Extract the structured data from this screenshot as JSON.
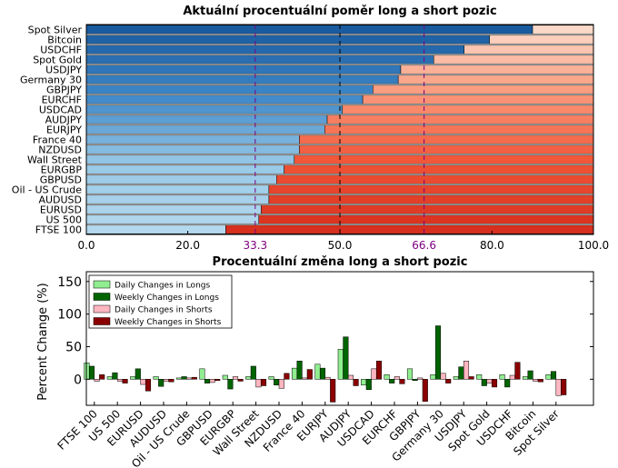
{
  "chart_data": [
    {
      "type": "bar",
      "orientation": "horizontal",
      "stacked": true,
      "title": "Aktuální procentuální poměr long a short pozic",
      "categories": [
        "Spot Silver",
        "Bitcoin",
        "USDCHF",
        "Spot Gold",
        "USDJPY",
        "Germany 30",
        "GBPJPY",
        "EURCHF",
        "USDCAD",
        "AUDJPY",
        "EURJPY",
        "France 40",
        "NZDUSD",
        "Wall Street",
        "EURGBP",
        "GBPUSD",
        "Oil - US Crude",
        "AUDUSD",
        "EURUSD",
        "US 500",
        "FTSE 100"
      ],
      "series": [
        {
          "name": "Long",
          "values": [
            88.0,
            79.5,
            74.5,
            68.5,
            62.0,
            61.5,
            56.5,
            54.5,
            50.5,
            47.5,
            47.0,
            42.0,
            42.0,
            41.0,
            39.0,
            37.5,
            36.0,
            36.0,
            34.5,
            34.0,
            27.5
          ]
        },
        {
          "name": "Short",
          "values": [
            12.0,
            20.5,
            25.5,
            31.5,
            38.0,
            38.5,
            43.5,
            45.5,
            49.5,
            52.5,
            53.0,
            58.0,
            58.0,
            59.0,
            61.0,
            62.5,
            64.0,
            64.0,
            65.5,
            66.0,
            72.5
          ]
        }
      ],
      "xlim": [
        0,
        100
      ],
      "xticks": [
        "0.0",
        "20.0",
        "50.0",
        "80.0",
        "100.0"
      ],
      "reference_lines": [
        "33.3",
        "66.6"
      ],
      "grid": false
    },
    {
      "type": "bar",
      "title": "Procentuální změna long a short pozic",
      "ylabel": "Percent Change (%)",
      "categories": [
        "FTSE 100",
        "US 500",
        "EURUSD",
        "AUDUSD",
        "Oil - US Crude",
        "GBPUSD",
        "EURGBP",
        "Wall Street",
        "NZDUSD",
        "France 40",
        "EURJPY",
        "AUDJPY",
        "USDCAD",
        "EURCHF",
        "GBPJPY",
        "Germany 30",
        "USDJPY",
        "Spot Gold",
        "USDCHF",
        "Bitcoin",
        "Spot Silver"
      ],
      "series": [
        {
          "name": "Daily Changes in Longs",
          "values": [
            25,
            4,
            4,
            4,
            2,
            16,
            6,
            4,
            4,
            17,
            23,
            46,
            -9,
            7,
            16,
            7,
            4,
            7,
            7,
            4,
            7
          ]
        },
        {
          "name": "Weekly Changes in Longs",
          "values": [
            20,
            10,
            16,
            -11,
            4,
            -6,
            -15,
            20,
            -9,
            28,
            17,
            65,
            -16,
            -6,
            -2,
            82,
            19,
            -10,
            -12,
            13,
            12
          ]
        },
        {
          "name": "Daily Changes in Shorts",
          "values": [
            -3,
            -3,
            -8,
            -3,
            2,
            -5,
            4,
            -12,
            -14,
            2,
            3,
            6,
            16,
            4,
            2,
            9,
            28,
            -6,
            6,
            -3,
            -25
          ]
        },
        {
          "name": "Weekly Changes in Shorts",
          "values": [
            7,
            -6,
            -18,
            -4,
            3,
            -2,
            -3,
            -10,
            9,
            15,
            -35,
            -10,
            28,
            -7,
            -34,
            -6,
            4,
            -12,
            26,
            -4,
            -24
          ]
        }
      ],
      "ylim": [
        -40,
        165
      ],
      "yticks": [
        "0",
        "50",
        "100",
        "150"
      ],
      "legend": "top-left",
      "grid": false
    }
  ],
  "colors": {
    "long_gradient": [
      "#1a5ba0",
      "#3f88c8",
      "#96c8e6",
      "#b4d9ee"
    ],
    "short_gradient": [
      "#fbd9c8",
      "#fb9678",
      "#f05436",
      "#d7301f"
    ],
    "daily_longs": "#90ee90",
    "weekly_longs": "#006400",
    "daily_shorts": "#ffb6c1",
    "weekly_shorts": "#8b0000",
    "reference_line": "#800080"
  }
}
